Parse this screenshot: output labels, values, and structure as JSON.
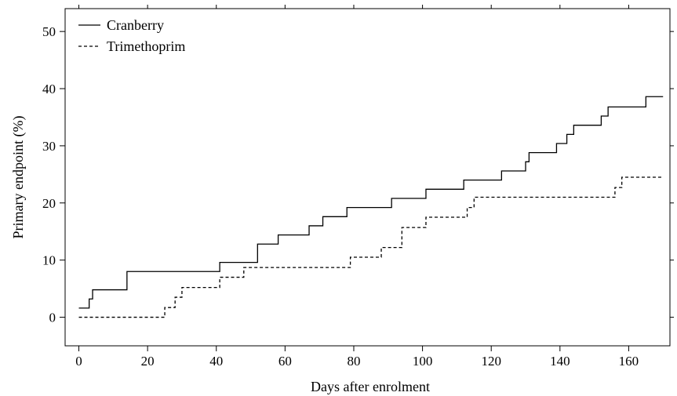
{
  "chart_data": {
    "type": "line",
    "step": true,
    "title": "",
    "xlabel": "Days after enrolment",
    "ylabel": "Primary endpoint (%)",
    "xlim": [
      -4,
      172
    ],
    "ylim": [
      -5,
      54
    ],
    "xticks": [
      0,
      20,
      40,
      60,
      80,
      100,
      120,
      140,
      160
    ],
    "yticks": [
      0,
      10,
      20,
      30,
      40,
      50
    ],
    "grid": false,
    "legend_position": "top-left",
    "series": [
      {
        "name": "Cranberry",
        "style": "solid",
        "color": "#000000",
        "points": [
          [
            0,
            1.6
          ],
          [
            3,
            3.2
          ],
          [
            4,
            4.8
          ],
          [
            14,
            8.0
          ],
          [
            41,
            9.6
          ],
          [
            52,
            12.8
          ],
          [
            58,
            14.4
          ],
          [
            67,
            16.0
          ],
          [
            71,
            17.6
          ],
          [
            78,
            19.2
          ],
          [
            91,
            20.8
          ],
          [
            101,
            22.4
          ],
          [
            112,
            24.0
          ],
          [
            123,
            25.6
          ],
          [
            130,
            27.2
          ],
          [
            131,
            28.8
          ],
          [
            139,
            30.4
          ],
          [
            142,
            32.0
          ],
          [
            144,
            33.6
          ],
          [
            152,
            35.2
          ],
          [
            154,
            36.8
          ],
          [
            165,
            38.6
          ],
          [
            170,
            38.6
          ]
        ]
      },
      {
        "name": "Trimethoprim",
        "style": "dashed",
        "color": "#000000",
        "points": [
          [
            0,
            0
          ],
          [
            25,
            1.7
          ],
          [
            28,
            3.5
          ],
          [
            30,
            5.2
          ],
          [
            41,
            7.0
          ],
          [
            48,
            8.7
          ],
          [
            79,
            10.5
          ],
          [
            88,
            12.2
          ],
          [
            94,
            15.7
          ],
          [
            101,
            17.5
          ],
          [
            113,
            19.2
          ],
          [
            115,
            21.0
          ],
          [
            156,
            22.7
          ],
          [
            158,
            24.5
          ],
          [
            170,
            24.5
          ]
        ]
      }
    ]
  }
}
